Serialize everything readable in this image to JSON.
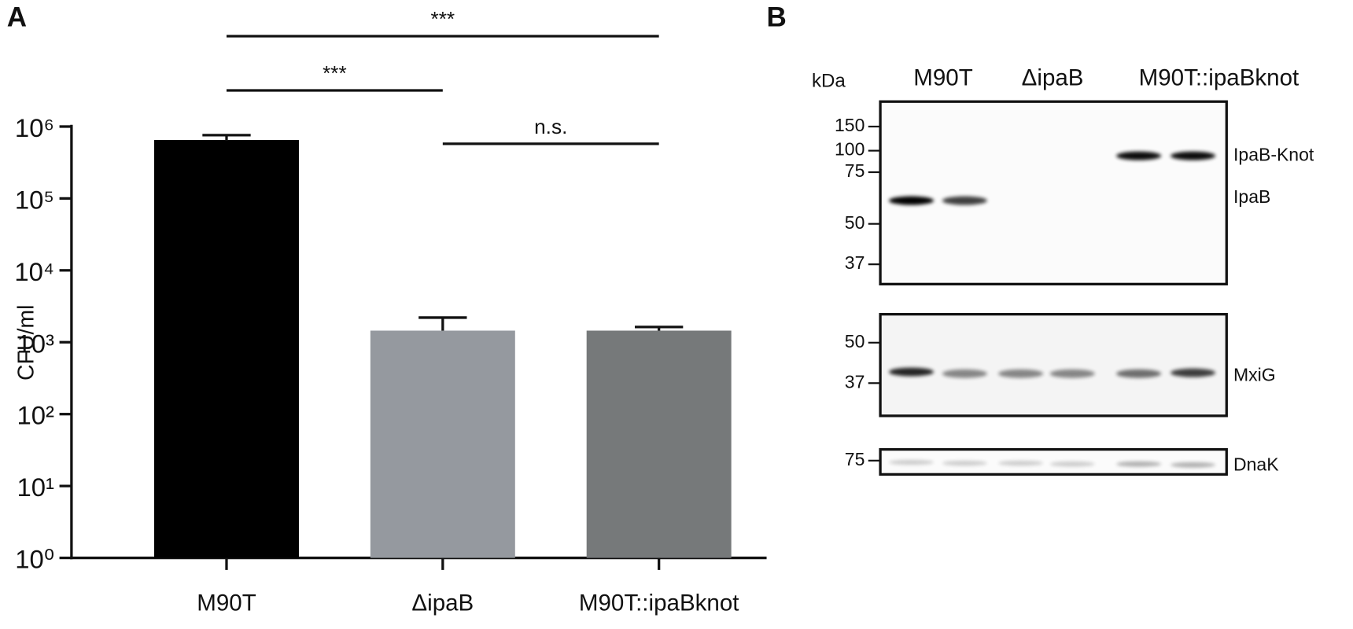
{
  "panel_labels": [
    "A",
    "B"
  ],
  "chart_data": {
    "type": "bar",
    "ylabel": "CFU/ml",
    "log_scale": true,
    "categories": [
      "M90T",
      "ΔipaB",
      "M90T::ipaBknot"
    ],
    "values": [
      650000,
      1450,
      1450
    ],
    "errors": [
      110000,
      750,
      180
    ],
    "colors": [
      "#000000",
      "#95999f",
      "#76797a"
    ],
    "ylim": [
      1,
      1000000
    ],
    "yticks": [
      {
        "value": 1,
        "label": "10⁰"
      },
      {
        "value": 10,
        "label": "10¹"
      },
      {
        "value": 100,
        "label": "10²"
      },
      {
        "value": 1000,
        "label": "10³"
      },
      {
        "value": 10000,
        "label": "10⁴"
      },
      {
        "value": 100000,
        "label": "10⁵"
      },
      {
        "value": 1000000,
        "label": "10⁶"
      }
    ],
    "significance": [
      {
        "label": "***",
        "from": 0,
        "to": 2
      },
      {
        "label": "***",
        "from": 0,
        "to": 1
      },
      {
        "label": "n.s.",
        "from": 1,
        "to": 2
      }
    ]
  },
  "blot": {
    "kda_label": "kDa",
    "lanes": [
      "M90T",
      "ΔipaB",
      "M90T::ipaBknot"
    ],
    "panels": [
      {
        "markers": [
          "150",
          "100",
          "75",
          "50",
          "37"
        ],
        "labels": [
          "IpaB-Knot",
          "IpaB"
        ]
      },
      {
        "markers": [
          "50",
          "37"
        ],
        "labels": [
          "MxiG"
        ]
      },
      {
        "markers": [
          "75"
        ],
        "labels": [
          "DnaK"
        ]
      }
    ]
  }
}
